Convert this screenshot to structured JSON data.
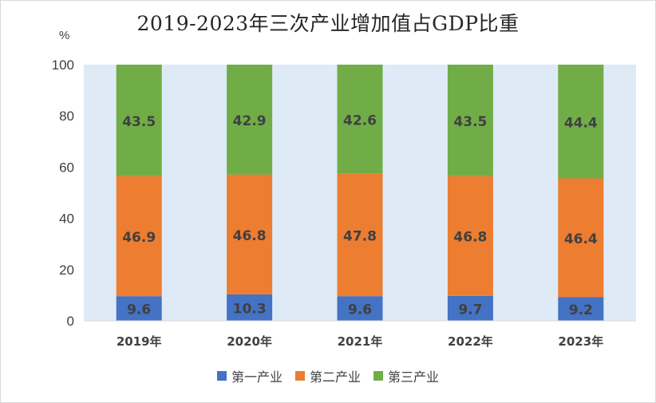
{
  "chart_data": {
    "type": "bar",
    "stacked": true,
    "title": "2019-2023年三次产业增加值占GDP比重",
    "unit": "%",
    "categories": [
      "2019年",
      "2020年",
      "2021年",
      "2022年",
      "2023年"
    ],
    "series": [
      {
        "name": "第一产业",
        "values": [
          9.6,
          10.3,
          9.6,
          9.7,
          9.2
        ],
        "color": "#4472C4"
      },
      {
        "name": "第二产业",
        "values": [
          46.9,
          46.8,
          47.8,
          46.8,
          46.4
        ],
        "color": "#ED7D31"
      },
      {
        "name": "第三产业",
        "values": [
          43.5,
          42.9,
          42.6,
          43.5,
          44.4
        ],
        "color": "#70AD47"
      }
    ],
    "ylim": [
      0,
      100
    ],
    "yticks": [
      "0",
      "20",
      "40",
      "60",
      "80",
      "100"
    ],
    "plot_background": "#DEEBF7",
    "grid": false,
    "legend_position": "bottom"
  }
}
